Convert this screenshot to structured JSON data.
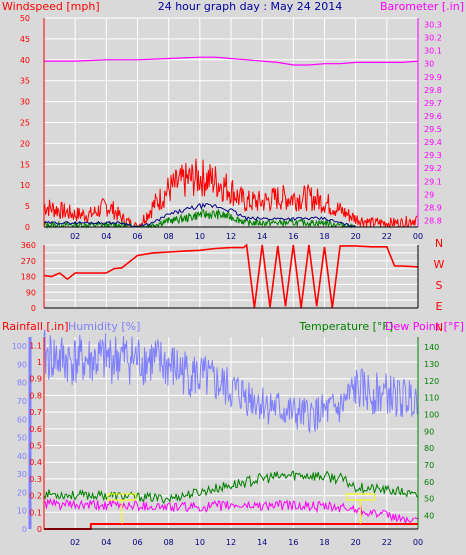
{
  "header": {
    "left_title": "Windspeed [mph]",
    "center_title": "24 hour graph day : May 24 2014",
    "right_title": "Barometer [.in]"
  },
  "colors": {
    "background": "#d9d9d9",
    "grid": "#ffffff",
    "wind_axis": "#ff0000",
    "wind_speed": "#ff0000",
    "wind_avg": "#000080",
    "wind_gust_low": "#008000",
    "barometer": "#ff00ff",
    "direction": "#ff0000",
    "rainfall": "#ff0000",
    "humidity": "#8080ff",
    "temperature": "#008000",
    "dew_point": "#ff00ff",
    "title": "#0000a0",
    "marker": "#ffff00"
  },
  "chart_data": [
    {
      "type": "line",
      "id": "wind-barometer",
      "x_ticks": [
        "02",
        "04",
        "06",
        "08",
        "10",
        "12",
        "14",
        "16",
        "18",
        "20",
        "22",
        "00"
      ],
      "x_range_hours": [
        0,
        24
      ],
      "y_left_label": "Windspeed [mph]",
      "y_left_ticks": [
        0,
        5,
        10,
        15,
        20,
        25,
        30,
        35,
        40,
        45,
        50
      ],
      "y_left_range": [
        0,
        50
      ],
      "y_right_label": "Barometer [.in]",
      "y_right_ticks": [
        "28.8",
        "28.9",
        "29",
        "29.1",
        "29.2",
        "29.3",
        "29.4",
        "29.5",
        "29.6",
        "29.7",
        "29.8",
        "29.9",
        "30",
        "30.1",
        "30.2",
        "30.3"
      ],
      "y_right_range": [
        28.75,
        30.35
      ],
      "grid": true,
      "series": [
        {
          "key": "gust",
          "hours": [
            0,
            1,
            2,
            3,
            4,
            4.5,
            5,
            6,
            7,
            7.5,
            8,
            9,
            10,
            11,
            12,
            12.5,
            13,
            14,
            15,
            16,
            17,
            18,
            19,
            20,
            21,
            22,
            23,
            24
          ],
          "values": [
            5,
            4,
            3,
            3,
            5,
            4,
            2,
            0,
            5,
            7,
            9,
            11,
            12,
            11,
            9,
            7,
            6,
            6,
            7,
            7,
            7,
            6,
            4,
            2,
            1,
            1,
            1,
            2
          ]
        },
        {
          "key": "average",
          "hours": [
            0,
            2,
            4,
            5,
            6,
            7,
            8,
            9,
            10,
            11,
            12,
            13,
            14,
            15,
            16,
            17,
            18,
            19,
            20,
            22,
            24
          ],
          "values": [
            1,
            1,
            1,
            1,
            0,
            1,
            3,
            4,
            5,
            5,
            4,
            2,
            2,
            2,
            2,
            2,
            2,
            1,
            0,
            0,
            0
          ]
        },
        {
          "key": "low",
          "hours": [
            0,
            2,
            4,
            5,
            6,
            7,
            8,
            9,
            10,
            11,
            12,
            13,
            14,
            15,
            16,
            17,
            18,
            19,
            20,
            22,
            24
          ],
          "values": [
            0.5,
            0.5,
            0.5,
            0.5,
            0,
            0.5,
            1.5,
            2,
            3,
            3,
            2.5,
            1,
            1,
            1,
            1,
            1,
            1,
            0.5,
            0,
            0,
            0
          ]
        },
        {
          "key": "barometer",
          "hours": [
            0,
            2,
            4,
            6,
            8,
            10,
            11,
            12,
            13,
            14,
            15,
            16,
            17,
            18,
            19,
            20,
            21,
            22,
            23,
            24
          ],
          "values": [
            30.02,
            30.02,
            30.03,
            30.03,
            30.04,
            30.05,
            30.05,
            30.04,
            30.03,
            30.02,
            30.01,
            29.99,
            29.99,
            30.0,
            30.0,
            30.01,
            30.01,
            30.01,
            30.01,
            30.02
          ]
        }
      ]
    },
    {
      "type": "line",
      "id": "wind-direction",
      "x_ticks": [
        "02",
        "04",
        "06",
        "08",
        "10",
        "12",
        "14",
        "16",
        "18",
        "20",
        "22",
        "00"
      ],
      "x_range_hours": [
        0,
        24
      ],
      "y_left_ticks": [
        0,
        45,
        90,
        135,
        180,
        225,
        270,
        315,
        360
      ],
      "y_left_range": [
        0,
        360
      ],
      "y_right_labels": [
        "N",
        "W",
        "S",
        "E",
        "N"
      ],
      "grid": true,
      "series": [
        {
          "key": "direction",
          "hours": [
            0,
            0.5,
            1,
            1.5,
            2,
            3,
            4,
            4.5,
            5,
            6,
            7,
            8,
            9,
            10,
            11,
            12,
            12.8,
            13,
            13.5,
            14,
            14.5,
            15,
            15.5,
            16,
            16.5,
            17,
            17.5,
            18,
            18.5,
            19,
            20,
            21,
            22,
            22.5,
            23,
            24
          ],
          "values": [
            185,
            180,
            200,
            165,
            200,
            200,
            200,
            225,
            230,
            300,
            315,
            320,
            325,
            330,
            340,
            345,
            345,
            360,
            0,
            360,
            5,
            355,
            10,
            360,
            0,
            360,
            10,
            350,
            0,
            355,
            355,
            350,
            350,
            240,
            240,
            235
          ]
        }
      ]
    },
    {
      "type": "line",
      "id": "rain-humidity-temp",
      "x_ticks": [
        "02",
        "04",
        "06",
        "08",
        "10",
        "12",
        "14",
        "16",
        "18",
        "20",
        "22",
        "00"
      ],
      "x_range_hours": [
        0,
        24
      ],
      "y_left_label": "Rainfall [.in]",
      "y_left_ticks": [
        "0",
        "0.1",
        "0.2",
        "0.3",
        "0.4",
        "0.5",
        "0.6",
        "0.7",
        "0.8",
        "0.9",
        "1",
        "1.1"
      ],
      "y_left_range": [
        0,
        1.15
      ],
      "y_humidity_label": "Humidity [%]",
      "y_humidity_ticks": [
        0,
        10,
        20,
        30,
        40,
        50,
        60,
        70,
        80,
        90,
        100
      ],
      "y_humidity_range": [
        0,
        105
      ],
      "y_right_label_temp": "Temperature [°F]",
      "y_right_label_dew": "Dew Point [°F]",
      "y_right_ticks": [
        40,
        50,
        60,
        70,
        80,
        90,
        100,
        110,
        120,
        130,
        140
      ],
      "y_right_range": [
        32,
        146
      ],
      "grid": true,
      "series": [
        {
          "key": "humidity",
          "hours": [
            0,
            1,
            2,
            3,
            4,
            5,
            6,
            7,
            8,
            9,
            10,
            11,
            12,
            13,
            14,
            15,
            16,
            17,
            18,
            19,
            20,
            21,
            22,
            23,
            24
          ],
          "values": [
            95,
            93,
            92,
            92,
            93,
            94,
            93,
            92,
            89,
            86,
            83,
            80,
            76,
            73,
            69,
            66,
            63,
            62,
            64,
            66,
            77,
            74,
            74,
            71,
            74
          ]
        },
        {
          "key": "temperature",
          "hours": [
            0,
            2,
            4,
            6,
            8,
            9,
            10,
            11,
            12,
            13,
            14,
            15,
            16,
            17,
            18,
            19,
            20,
            21,
            22,
            23,
            24
          ],
          "values": [
            53,
            52,
            52,
            51,
            50,
            52,
            54,
            56,
            58,
            60,
            62,
            63,
            64,
            64,
            63,
            62,
            57,
            56,
            55,
            54,
            51
          ]
        },
        {
          "key": "dew_point",
          "hours": [
            0,
            2,
            4,
            6,
            8,
            10,
            12,
            14,
            16,
            18,
            20,
            21,
            22,
            23,
            24
          ],
          "values": [
            47,
            46,
            46,
            46,
            45,
            45,
            46,
            46,
            46,
            45,
            44,
            42,
            40,
            38,
            36
          ]
        },
        {
          "key": "rainfall",
          "hours": [
            0,
            3,
            3.01,
            24
          ],
          "values": [
            0,
            0,
            0.03,
            0.03
          ]
        }
      ],
      "markers_hours": [
        5,
        20.3
      ]
    }
  ],
  "panel2_right_labels": [
    "N",
    "W",
    "S",
    "E",
    "N"
  ]
}
